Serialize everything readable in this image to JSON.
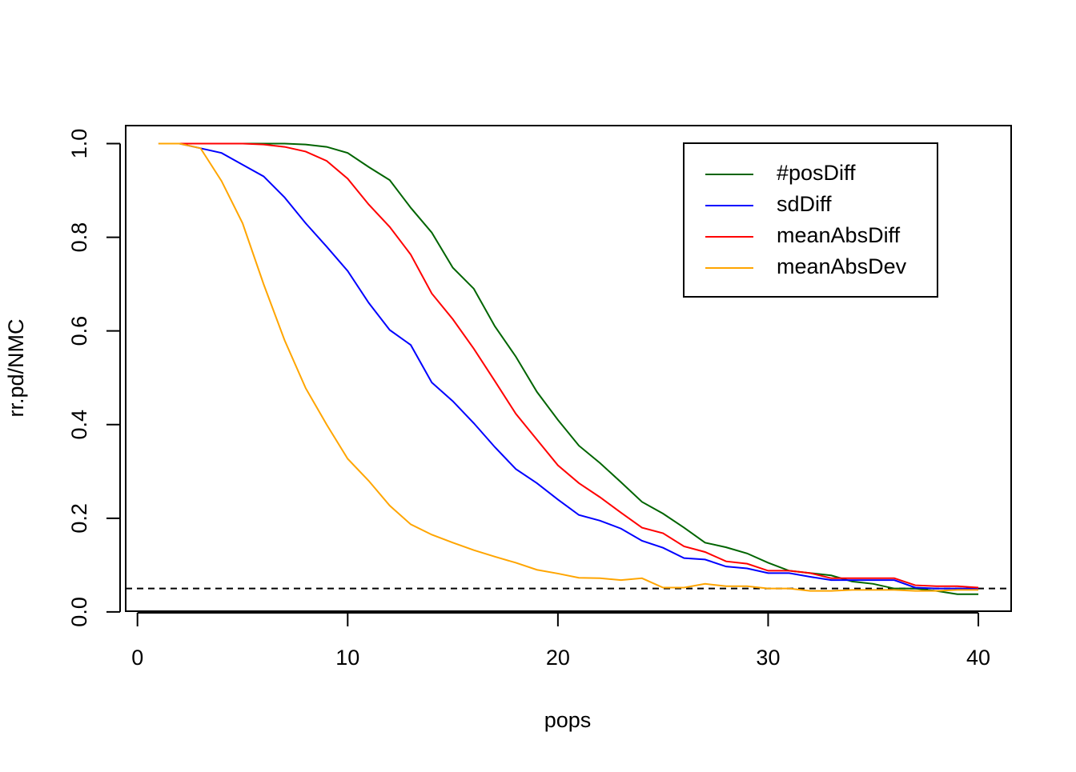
{
  "chart_data": {
    "type": "line",
    "xlabel": "pops",
    "ylabel": "rr.pd/NMC",
    "x": [
      1,
      2,
      3,
      4,
      5,
      6,
      7,
      8,
      9,
      10,
      11,
      12,
      13,
      14,
      15,
      16,
      17,
      18,
      19,
      20,
      21,
      22,
      23,
      24,
      25,
      26,
      27,
      28,
      29,
      30,
      31,
      32,
      33,
      34,
      35,
      36,
      37,
      38,
      39,
      40
    ],
    "series": [
      {
        "name": "#posDiff",
        "color": "#006400",
        "values": [
          1,
          1,
          1,
          1,
          1,
          1,
          1,
          0.998,
          0.993,
          0.98,
          0.95,
          0.922,
          0.863,
          0.81,
          0.735,
          0.69,
          0.61,
          0.545,
          0.47,
          0.41,
          0.355,
          0.318,
          0.277,
          0.235,
          0.21,
          0.18,
          0.148,
          0.138,
          0.125,
          0.105,
          0.088,
          0.083,
          0.078,
          0.065,
          0.06,
          0.05,
          0.05,
          0.045,
          0.038,
          0.038
        ]
      },
      {
        "name": "sdDiff",
        "color": "#0000ff",
        "values": [
          1,
          1,
          0.99,
          0.98,
          0.955,
          0.93,
          0.885,
          0.83,
          0.78,
          0.728,
          0.66,
          0.602,
          0.57,
          0.49,
          0.45,
          0.403,
          0.352,
          0.305,
          0.275,
          0.24,
          0.207,
          0.195,
          0.178,
          0.152,
          0.137,
          0.115,
          0.112,
          0.097,
          0.093,
          0.083,
          0.083,
          0.075,
          0.068,
          0.068,
          0.068,
          0.068,
          0.052,
          0.05,
          0.05,
          0.05
        ]
      },
      {
        "name": "meanAbsDiff",
        "color": "#ff0000",
        "values": [
          1,
          1,
          1,
          1,
          1,
          0.998,
          0.993,
          0.983,
          0.963,
          0.925,
          0.87,
          0.822,
          0.763,
          0.68,
          0.625,
          0.562,
          0.493,
          0.423,
          0.368,
          0.313,
          0.275,
          0.245,
          0.212,
          0.18,
          0.168,
          0.14,
          0.128,
          0.108,
          0.103,
          0.088,
          0.088,
          0.083,
          0.072,
          0.072,
          0.072,
          0.072,
          0.057,
          0.055,
          0.055,
          0.052
        ]
      },
      {
        "name": "meanAbsDev",
        "color": "#ffa500",
        "values": [
          1,
          1,
          0.99,
          0.92,
          0.83,
          0.7,
          0.58,
          0.478,
          0.4,
          0.327,
          0.28,
          0.227,
          0.187,
          0.165,
          0.148,
          0.132,
          0.118,
          0.105,
          0.09,
          0.082,
          0.073,
          0.072,
          0.068,
          0.072,
          0.052,
          0.052,
          0.06,
          0.055,
          0.055,
          0.05,
          0.05,
          0.045,
          0.045,
          0.047,
          0.047,
          0.047,
          0.045,
          0.045,
          0.047,
          0.047
        ]
      }
    ],
    "hline": 0.05,
    "xlim": [
      -0.56,
      41.56
    ],
    "xticks": [
      0,
      10,
      20,
      30,
      40
    ],
    "ylim": [
      0.0016,
      1.0384
    ],
    "yticks": [
      {
        "value": 0,
        "label": "0.0"
      },
      0.2,
      0.4,
      0.6,
      0.8,
      {
        "value": 1,
        "label": "1.0"
      }
    ],
    "legend": "top-right"
  }
}
